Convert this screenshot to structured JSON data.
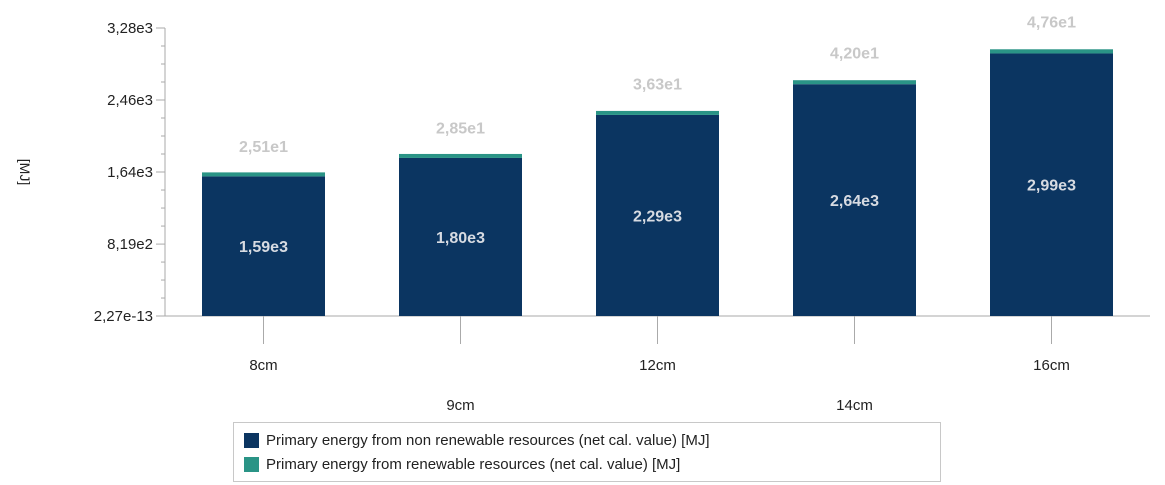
{
  "chart_data": {
    "type": "bar",
    "stacked": true,
    "title": "",
    "xlabel": "",
    "ylabel": "[MJ]",
    "categories": [
      "8cm",
      "9cm",
      "12cm",
      "14cm",
      "16cm"
    ],
    "series": [
      {
        "name": "Primary energy from non renewable resources (net cal. value) [MJ]",
        "color": "#0b3561",
        "values": [
          1590,
          1800,
          2290,
          2640,
          2990
        ],
        "labels": [
          "1,59e3",
          "1,80e3",
          "2,29e3",
          "2,64e3",
          "2,99e3"
        ]
      },
      {
        "name": "Primary energy from renewable resources (net cal. value) [MJ]",
        "color": "#2a9486",
        "values": [
          25.1,
          28.5,
          36.3,
          42.0,
          47.6
        ],
        "labels": [
          "2,51e1",
          "2,85e1",
          "3,63e1",
          "4,20e1",
          "4,76e1"
        ]
      }
    ],
    "ylim": [
      0,
      3280
    ],
    "yticks": [
      0,
      819,
      1640,
      2460,
      3280
    ],
    "ytick_labels": [
      "2,27e-13",
      "8,19e2",
      "1,64e3",
      "2,46e3",
      "3,28e3"
    ],
    "grid": false,
    "legend": "bottom"
  }
}
